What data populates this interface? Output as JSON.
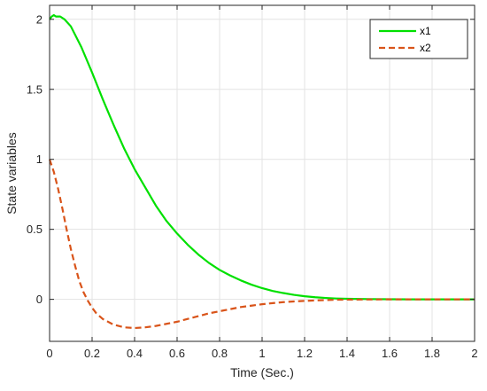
{
  "chart_data": {
    "type": "line",
    "title": "",
    "xlabel": "Time (Sec.)",
    "ylabel": "State variables",
    "xlim": [
      0,
      2
    ],
    "ylim": [
      -0.3,
      2.1
    ],
    "xticks": [
      0,
      0.2,
      0.4,
      0.6,
      0.8,
      1,
      1.2,
      1.4,
      1.6,
      1.8,
      2
    ],
    "xtick_labels": [
      "0",
      "0.2",
      "0.4",
      "0.6",
      "0.8",
      "1",
      "1.2",
      "1.4",
      "1.6",
      "1.8",
      "2"
    ],
    "yticks": [
      0,
      0.5,
      1,
      1.5,
      2
    ],
    "ytick_labels": [
      "0",
      "0.5",
      "1",
      "1.5",
      "2"
    ],
    "grid": true,
    "legend_position": "top-right",
    "series": [
      {
        "name": "x1",
        "color": "#00e000",
        "style": "solid",
        "x": [
          0,
          0.01,
          0.02,
          0.03,
          0.05,
          0.07,
          0.1,
          0.15,
          0.2,
          0.25,
          0.3,
          0.35,
          0.4,
          0.45,
          0.5,
          0.55,
          0.6,
          0.65,
          0.7,
          0.75,
          0.8,
          0.85,
          0.9,
          0.95,
          1.0,
          1.05,
          1.1,
          1.15,
          1.2,
          1.25,
          1.3,
          1.35,
          1.4,
          1.5,
          1.6,
          1.7,
          1.8,
          1.9,
          2.0
        ],
        "y": [
          2.0,
          2.02,
          2.03,
          2.02,
          2.02,
          2.0,
          1.95,
          1.8,
          1.62,
          1.43,
          1.25,
          1.08,
          0.93,
          0.8,
          0.67,
          0.56,
          0.47,
          0.39,
          0.32,
          0.26,
          0.21,
          0.17,
          0.135,
          0.105,
          0.08,
          0.06,
          0.045,
          0.032,
          0.022,
          0.015,
          0.01,
          0.006,
          0.004,
          0.002,
          0.001,
          0.0,
          0.0,
          0.0,
          0.0
        ]
      },
      {
        "name": "x2",
        "color": "#d9541a",
        "style": "dashed",
        "x": [
          0,
          0.02,
          0.04,
          0.06,
          0.08,
          0.1,
          0.12,
          0.14,
          0.16,
          0.18,
          0.2,
          0.22,
          0.25,
          0.3,
          0.35,
          0.4,
          0.45,
          0.5,
          0.55,
          0.6,
          0.65,
          0.7,
          0.75,
          0.8,
          0.85,
          0.9,
          0.95,
          1.0,
          1.05,
          1.1,
          1.15,
          1.2,
          1.25,
          1.3,
          1.35,
          1.4,
          1.5,
          1.6,
          1.7,
          1.8,
          1.9,
          2.0
        ],
        "y": [
          1.0,
          0.91,
          0.79,
          0.65,
          0.5,
          0.36,
          0.24,
          0.13,
          0.05,
          -0.01,
          -0.06,
          -0.1,
          -0.14,
          -0.18,
          -0.2,
          -0.205,
          -0.2,
          -0.19,
          -0.175,
          -0.16,
          -0.14,
          -0.12,
          -0.1,
          -0.085,
          -0.07,
          -0.055,
          -0.045,
          -0.035,
          -0.027,
          -0.02,
          -0.015,
          -0.011,
          -0.008,
          -0.005,
          -0.003,
          -0.002,
          -0.001,
          0.0,
          0.0,
          0.0,
          0.0,
          0.0
        ]
      }
    ]
  }
}
